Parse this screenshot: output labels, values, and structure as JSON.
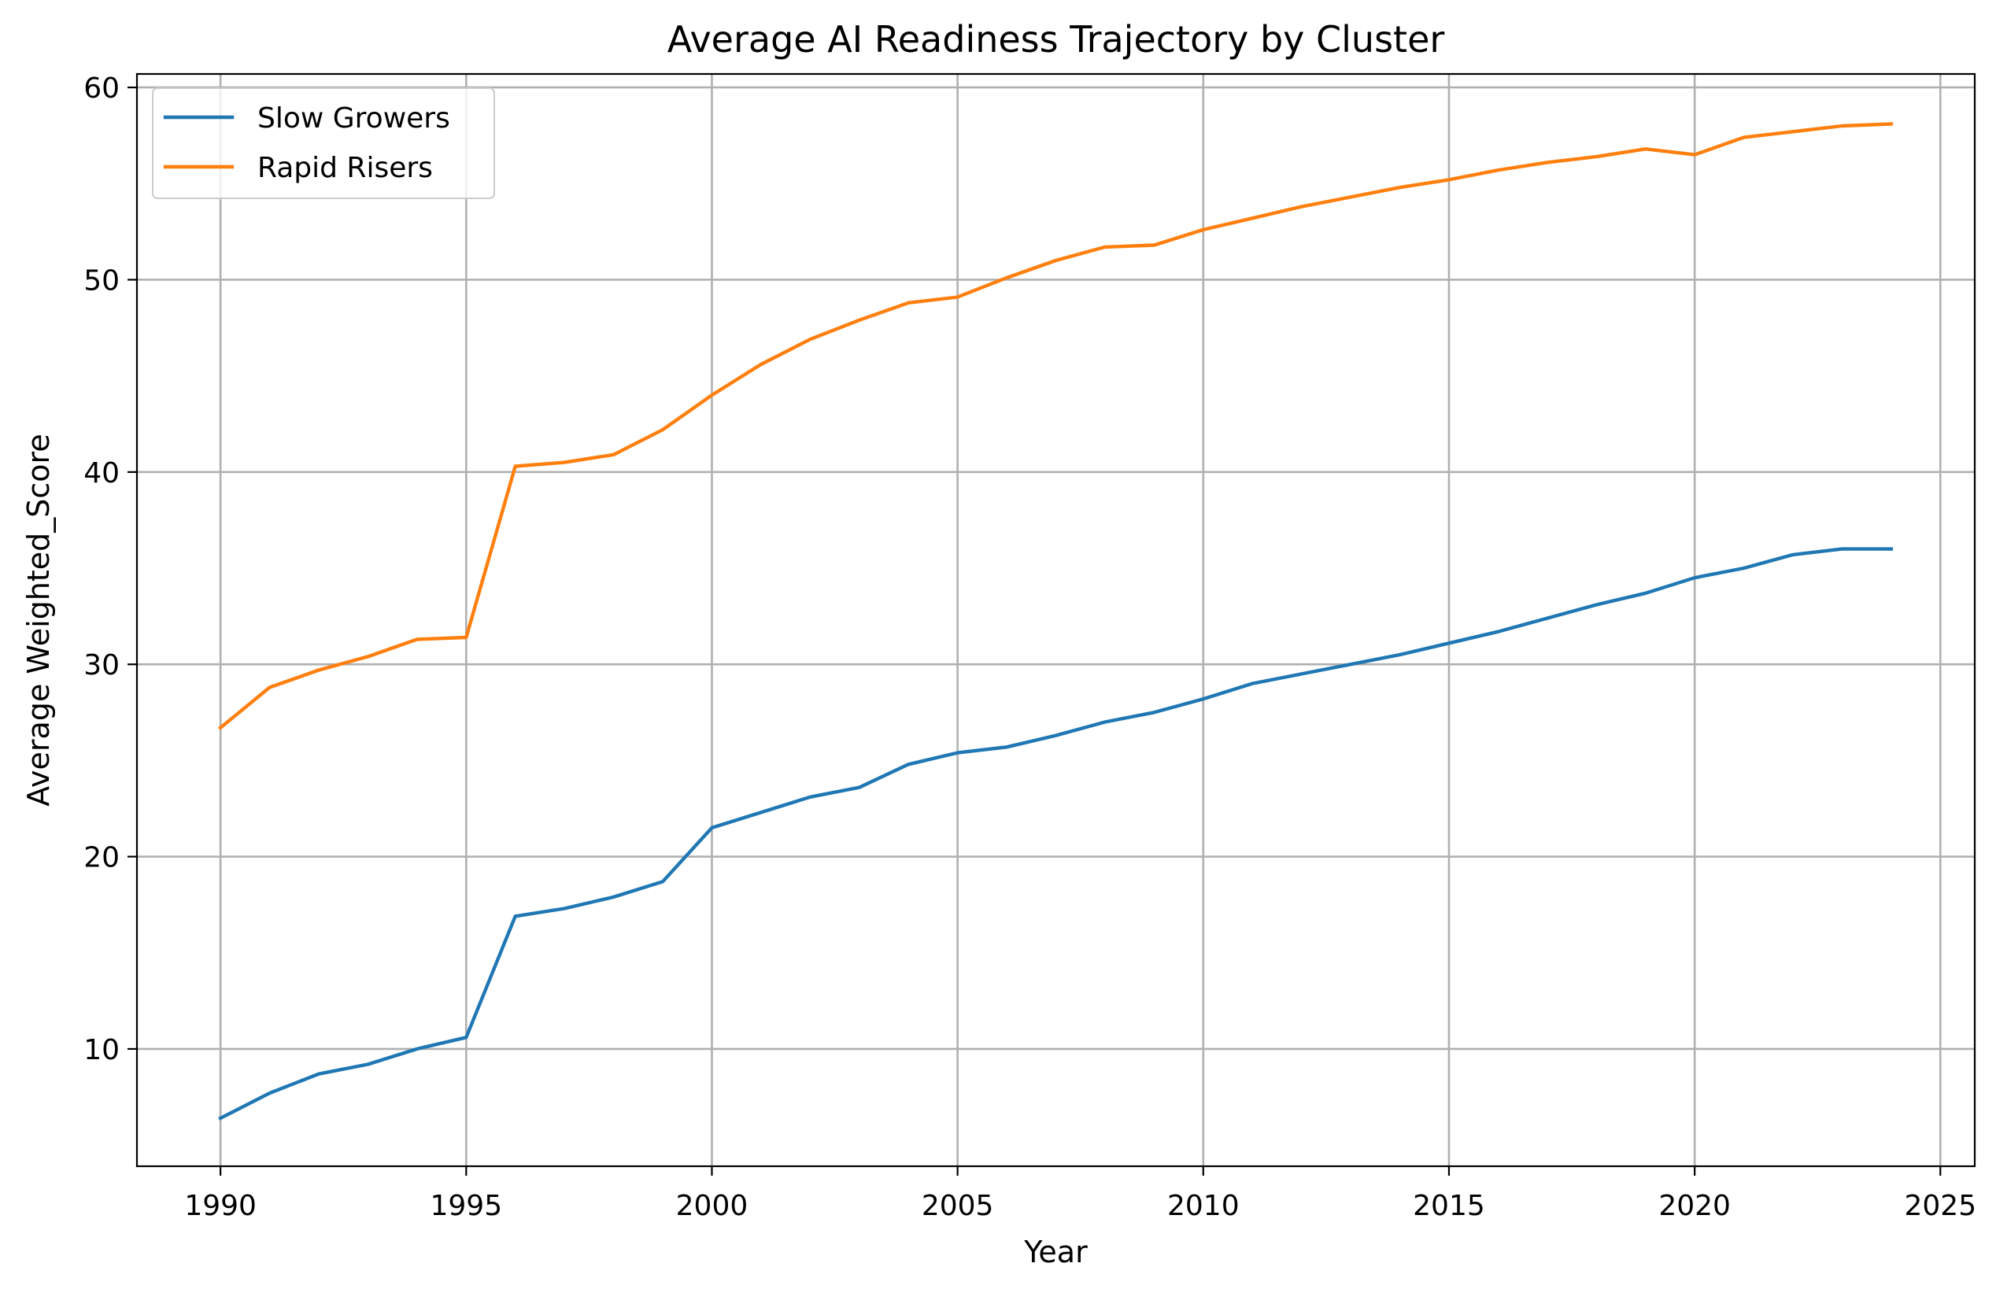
{
  "chart_data": {
    "type": "line",
    "title": "Average AI Readiness Trajectory by Cluster",
    "xlabel": "Year",
    "ylabel": "Average Weighted_Score",
    "xlim": [
      1988.3,
      2025.7
    ],
    "ylim": [
      3.9,
      60.7
    ],
    "x_ticks": [
      1990,
      1995,
      2000,
      2005,
      2010,
      2015,
      2020,
      2025
    ],
    "y_ticks": [
      10,
      20,
      30,
      40,
      50,
      60
    ],
    "grid": true,
    "legend_position": "top-left",
    "x": [
      1990,
      1991,
      1992,
      1993,
      1994,
      1995,
      1996,
      1997,
      1998,
      1999,
      2000,
      2001,
      2002,
      2003,
      2004,
      2005,
      2006,
      2007,
      2008,
      2009,
      2010,
      2011,
      2012,
      2013,
      2014,
      2015,
      2016,
      2017,
      2018,
      2019,
      2020,
      2021,
      2022,
      2023,
      2024
    ],
    "series": [
      {
        "name": "Slow Growers",
        "color": "#1f77b4",
        "values": [
          6.4,
          7.7,
          8.7,
          9.2,
          10.0,
          10.6,
          16.9,
          17.3,
          17.9,
          18.7,
          21.5,
          22.3,
          23.1,
          23.6,
          24.8,
          25.4,
          25.7,
          26.3,
          27.0,
          27.5,
          28.2,
          29.0,
          29.5,
          30.0,
          30.5,
          31.1,
          31.7,
          32.4,
          33.1,
          33.7,
          34.5,
          35.0,
          35.7,
          36.0,
          36.0
        ]
      },
      {
        "name": "Rapid Risers",
        "color": "#ff7f0e",
        "values": [
          26.7,
          28.8,
          29.7,
          30.4,
          31.3,
          31.4,
          40.3,
          40.5,
          40.9,
          42.2,
          44.0,
          45.6,
          46.9,
          47.9,
          48.8,
          49.1,
          50.1,
          51.0,
          51.7,
          51.8,
          52.6,
          53.2,
          53.8,
          54.3,
          54.8,
          55.2,
          55.7,
          56.1,
          56.4,
          56.8,
          56.5,
          57.4,
          57.7,
          58.0,
          58.1
        ]
      }
    ]
  }
}
